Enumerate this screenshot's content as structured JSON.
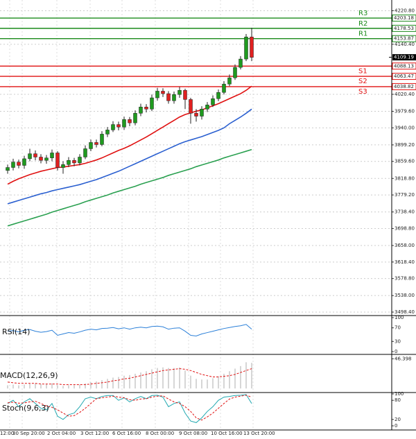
{
  "chart_data": [
    {
      "type": "candlestick",
      "open": [
        3838,
        3845,
        3858,
        3850,
        3866,
        3878,
        3870,
        3862,
        3868,
        3880,
        3845,
        3852,
        3862,
        3856,
        3870,
        3890,
        3905,
        3900,
        3925,
        3935,
        3948,
        3942,
        3960,
        3952,
        3975,
        3990,
        3985,
        4012,
        4028,
        4022,
        4005,
        4020,
        4030,
        4008,
        3975,
        3968,
        3985,
        3995,
        4010,
        4025,
        4045,
        4060,
        4085,
        4105,
        4158
      ],
      "high": [
        3852,
        3866,
        3864,
        3873,
        3890,
        3886,
        3877,
        3875,
        3888,
        3884,
        3860,
        3870,
        3868,
        3877,
        3898,
        3912,
        3912,
        3932,
        3942,
        3956,
        3955,
        3967,
        3966,
        3982,
        3998,
        3997,
        4020,
        4036,
        4035,
        4028,
        4027,
        4038,
        4034,
        4012,
        3985,
        3992,
        4002,
        4018,
        4032,
        4052,
        4068,
        4092,
        4112,
        4165,
        4180
      ],
      "low": [
        3830,
        3838,
        3843,
        3842,
        3860,
        3862,
        3855,
        3854,
        3860,
        3838,
        3830,
        3846,
        3848,
        3850,
        3865,
        3884,
        3893,
        3896,
        3918,
        3930,
        3934,
        3935,
        3944,
        3946,
        3968,
        3977,
        3980,
        4005,
        4014,
        3998,
        3998,
        4012,
        3985,
        3950,
        3955,
        3960,
        3978,
        3990,
        4004,
        4020,
        4040,
        4055,
        4080,
        4100,
        4100
      ],
      "close": [
        3845,
        3858,
        3850,
        3866,
        3878,
        3870,
        3862,
        3868,
        3880,
        3845,
        3852,
        3862,
        3856,
        3870,
        3890,
        3905,
        3900,
        3925,
        3935,
        3948,
        3942,
        3960,
        3952,
        3975,
        3990,
        3985,
        4012,
        4028,
        4022,
        4005,
        4020,
        4030,
        4008,
        3975,
        3968,
        3985,
        3995,
        4010,
        4025,
        4045,
        4060,
        4085,
        4105,
        4158,
        4109
      ],
      "up_color": "#1f9a1f",
      "down_color": "#e02020",
      "lines": [
        {
          "color": "#e01010",
          "values": [
            3805,
            3812,
            3818,
            3823,
            3828,
            3832,
            3836,
            3839,
            3842,
            3845,
            3846,
            3848,
            3850,
            3852,
            3855,
            3859,
            3863,
            3868,
            3874,
            3880,
            3886,
            3891,
            3897,
            3904,
            3911,
            3918,
            3926,
            3934,
            3942,
            3950,
            3958,
            3966,
            3972,
            3976,
            3980,
            3983,
            3988,
            3993,
            3998,
            4004,
            4010,
            4016,
            4022,
            4030,
            4040
          ]
        },
        {
          "color": "#2a5fd0",
          "values": [
            3758,
            3762,
            3766,
            3770,
            3774,
            3778,
            3782,
            3785,
            3789,
            3792,
            3795,
            3798,
            3801,
            3804,
            3808,
            3812,
            3816,
            3821,
            3826,
            3831,
            3836,
            3842,
            3848,
            3854,
            3860,
            3866,
            3872,
            3878,
            3884,
            3890,
            3896,
            3902,
            3907,
            3911,
            3915,
            3919,
            3924,
            3929,
            3934,
            3940,
            3950,
            3958,
            3966,
            3975,
            3985
          ]
        },
        {
          "color": "#2aa050",
          "values": [
            3705,
            3709,
            3713,
            3717,
            3721,
            3725,
            3729,
            3733,
            3738,
            3742,
            3746,
            3750,
            3754,
            3758,
            3763,
            3767,
            3771,
            3775,
            3779,
            3784,
            3788,
            3792,
            3796,
            3800,
            3805,
            3809,
            3813,
            3817,
            3821,
            3826,
            3830,
            3834,
            3838,
            3842,
            3847,
            3851,
            3855,
            3859,
            3863,
            3868,
            3872,
            3876,
            3880,
            3884,
            3888
          ]
        }
      ],
      "levels": [
        {
          "name": "R3",
          "value": 4203.18,
          "value_label": "4203.18",
          "color": "#1a8a1a"
        },
        {
          "name": "R2",
          "value": 4178.53,
          "value_label": "4178.53",
          "color": "#1a8a1a"
        },
        {
          "name": "R1",
          "value": 4153.87,
          "value_label": "4153.87",
          "color": "#1a8a1a"
        },
        {
          "name": "S1",
          "value": 4088.13,
          "value_label": "4088.13",
          "color": "#e01010"
        },
        {
          "name": "S2",
          "value": 4063.47,
          "value_label": "4063.47",
          "color": "#e01010"
        },
        {
          "name": "S3",
          "value": 4038.82,
          "value_label": "4038.82",
          "color": "#e01010"
        }
      ],
      "last_price": {
        "value": 4109.19,
        "value_label": "4109.19"
      },
      "ylim": [
        3498.4,
        4246.5
      ],
      "yticks": [
        {
          "value": 4220.8,
          "label": "4220.80"
        },
        {
          "value": 4140.4,
          "label": "4140.40"
        },
        {
          "value": 4020.4,
          "label": "4020.40"
        },
        {
          "value": 3979.6,
          "label": "3979.60"
        },
        {
          "value": 3940,
          "label": "3940.00"
        },
        {
          "value": 3899.2,
          "label": "3899.20"
        },
        {
          "value": 3859.6,
          "label": "3859.60"
        },
        {
          "value": 3818.8,
          "label": "3818.80"
        },
        {
          "value": 3779.2,
          "label": "3779.20"
        },
        {
          "value": 3738.4,
          "label": "3738.40"
        },
        {
          "value": 3698.8,
          "label": "3698.80"
        },
        {
          "value": 3658,
          "label": "3658.00"
        },
        {
          "value": 3618.4,
          "label": "3618.40"
        },
        {
          "value": 3578.8,
          "label": "3578.80"
        },
        {
          "value": 3538,
          "label": "3538.00"
        },
        {
          "value": 3498.4,
          "label": "3498.40"
        }
      ],
      "xtick_labels": [
        "12:00",
        "30 Sep 20:00",
        "2 Oct 04:00",
        "3 Oct 12:00",
        "6 Oct 16:00",
        "8 Oct 00:00",
        "9 Oct 08:00",
        "10 Oct 16:00",
        "13 Oct 20:00"
      ],
      "grid": true
    },
    {
      "type": "line",
      "title": "RSI(14)",
      "series": [
        {
          "color": "#2a7fd8",
          "dash": false,
          "values": [
            60,
            62,
            58,
            63,
            65,
            60,
            57,
            59,
            63,
            48,
            52,
            56,
            54,
            58,
            63,
            66,
            64,
            68,
            69,
            71,
            67,
            70,
            66,
            70,
            72,
            70,
            74,
            75,
            73,
            66,
            69,
            70,
            60,
            48,
            46,
            52,
            56,
            60,
            64,
            68,
            71,
            74,
            76,
            80,
            66
          ]
        }
      ],
      "ylim": [
        0,
        100
      ],
      "yticks": [
        100,
        70,
        30,
        0
      ]
    },
    {
      "type": "macd",
      "title": "MACD(12,26,9)",
      "histogram": {
        "color": "#c8c8c8",
        "values": [
          5,
          6,
          5,
          6,
          8,
          8,
          7,
          7,
          8,
          5,
          4,
          5,
          5,
          6,
          8,
          10,
          11,
          13,
          15,
          17,
          18,
          20,
          21,
          23,
          25,
          27,
          30,
          32,
          33,
          32,
          32,
          33,
          28,
          20,
          15,
          14,
          14,
          16,
          19,
          23,
          27,
          31,
          35,
          41,
          40
        ]
      },
      "signal": {
        "color": "#e01010",
        "values": [
          10,
          9,
          8,
          8,
          8,
          8,
          7,
          7,
          7,
          7,
          6,
          6,
          6,
          6,
          6,
          7,
          8,
          9,
          10,
          12,
          13,
          15,
          16,
          18,
          20,
          22,
          24,
          26,
          28,
          29,
          30,
          31,
          30,
          28,
          25,
          22,
          20,
          18,
          18,
          19,
          20,
          22,
          25,
          28,
          31
        ]
      },
      "ylim": [
        -2,
        50
      ],
      "yticks": [
        46.398
      ]
    },
    {
      "type": "line",
      "title": "Stoch(9,6,3)",
      "series": [
        {
          "color": "#20a8b0",
          "dash": false,
          "values": [
            70,
            80,
            60,
            75,
            85,
            70,
            55,
            50,
            70,
            30,
            20,
            35,
            40,
            60,
            85,
            90,
            85,
            92,
            95,
            95,
            80,
            88,
            75,
            85,
            92,
            85,
            95,
            96,
            90,
            60,
            70,
            75,
            40,
            15,
            10,
            25,
            45,
            60,
            80,
            90,
            92,
            95,
            96,
            98,
            70
          ]
        },
        {
          "color": "#e01010",
          "dash": true,
          "values": [
            72,
            74,
            71,
            72,
            75,
            77,
            70,
            62,
            58,
            50,
            40,
            30,
            32,
            42,
            55,
            70,
            85,
            88,
            90,
            93,
            90,
            88,
            82,
            80,
            84,
            85,
            90,
            93,
            94,
            84,
            75,
            70,
            60,
            45,
            25,
            18,
            28,
            40,
            55,
            70,
            84,
            90,
            93,
            96,
            90
          ]
        }
      ],
      "ylim": [
        0,
        100
      ],
      "yticks": [
        100,
        80,
        20,
        0
      ]
    }
  ]
}
